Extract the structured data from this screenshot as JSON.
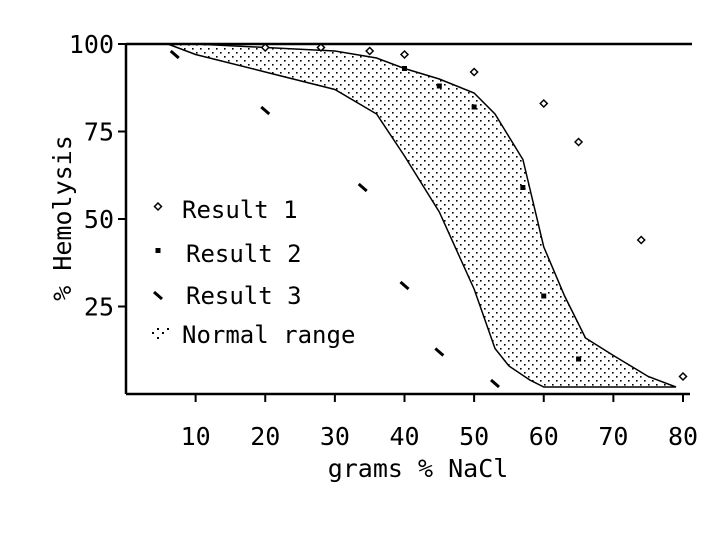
{
  "chart_data": {
    "type": "scatter",
    "title": "",
    "xlabel": "grams % NaCl",
    "ylabel": "% Hemolysis",
    "xlim": [
      0,
      80
    ],
    "ylim": [
      0,
      100
    ],
    "x_ticks": [
      "10",
      "20",
      "30",
      "40",
      "50",
      "60",
      "70",
      "80"
    ],
    "y_ticks": [
      "100",
      "75",
      "50",
      "25"
    ],
    "x_tick_values": [
      10,
      20,
      30,
      40,
      50,
      60,
      70,
      80
    ],
    "y_tick_values": [
      100,
      75,
      50,
      25
    ],
    "grid": false,
    "legend_position": "left",
    "legend": [
      {
        "label": "Result 1",
        "marker": "diamond"
      },
      {
        "label": "Result 2",
        "marker": "dot"
      },
      {
        "label": "Result 3",
        "marker": "dash"
      },
      {
        "label": "Normal range",
        "marker": "dotted-area"
      }
    ],
    "series": [
      {
        "name": "Result 1",
        "marker": "diamond",
        "x": [
          20,
          28,
          35,
          40,
          50,
          60,
          65,
          74,
          80
        ],
        "y": [
          99,
          99,
          98,
          97,
          92,
          83,
          72,
          44,
          5
        ]
      },
      {
        "name": "Result 2",
        "marker": "dot",
        "x": [
          40,
          45,
          50,
          57,
          60,
          65
        ],
        "y": [
          93,
          88,
          82,
          59,
          28,
          10
        ]
      },
      {
        "name": "Result 3",
        "marker": "dash",
        "x": [
          7,
          20,
          34,
          40,
          45,
          53
        ],
        "y": [
          97,
          81,
          59,
          31,
          12,
          3
        ]
      }
    ],
    "normal_range": {
      "name": "Normal range",
      "upper": {
        "x": [
          10,
          20,
          30,
          36,
          40,
          45,
          50,
          53,
          57,
          60,
          63,
          66,
          70,
          75,
          79
        ],
        "y": [
          100,
          99,
          98,
          96,
          93,
          90,
          86,
          80,
          67,
          42,
          28,
          16,
          11,
          5,
          2
        ]
      },
      "lower": {
        "x": [
          6,
          10,
          20,
          30,
          36,
          40,
          45,
          50,
          53,
          55,
          58,
          60
        ],
        "y": [
          100,
          97,
          92,
          87,
          80,
          68,
          52,
          30,
          13,
          8,
          4,
          2
        ]
      }
    }
  }
}
